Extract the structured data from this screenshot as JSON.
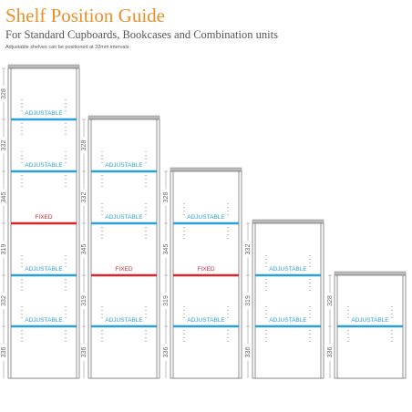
{
  "header": {
    "title": "Shelf Position Guide",
    "subtitle": "For Standard Cupboards, Bookcases and Combination units",
    "note": "Adjustable shelves can be positioned at 32mm intervals"
  },
  "cabinets": [
    {
      "shelves": [
        {
          "label": "ADJUSTABLE",
          "color": "#2a9fd8"
        },
        {
          "label": "ADJUSTABLE",
          "color": "#2a9fd8"
        },
        {
          "label": "FIXED",
          "color": "#d8262c"
        },
        {
          "label": "ADJUSTABLE",
          "color": "#2a9fd8"
        },
        {
          "label": "ADJUSTABLE",
          "color": "#2a9fd8"
        }
      ],
      "dims": [
        328,
        332,
        345,
        319,
        332,
        336
      ]
    },
    {
      "shelves": [
        {
          "label": "ADJUSTABLE",
          "color": "#2a9fd8"
        },
        {
          "label": "ADJUSTABLE",
          "color": "#2a9fd8"
        },
        {
          "label": "FIXED",
          "color": "#d8262c"
        },
        {
          "label": "ADJUSTABLE",
          "color": "#2a9fd8"
        }
      ],
      "dims": [
        328,
        332,
        345,
        319,
        336
      ]
    },
    {
      "shelves": [
        {
          "label": "ADJUSTABLE",
          "color": "#2a9fd8"
        },
        {
          "label": "FIXED",
          "color": "#d8262c"
        },
        {
          "label": "ADJUSTABLE",
          "color": "#2a9fd8"
        }
      ],
      "dims": [
        328,
        345,
        319,
        336
      ]
    },
    {
      "shelves": [
        {
          "label": "ADJUSTABLE",
          "color": "#2a9fd8"
        },
        {
          "label": "ADJUSTABLE",
          "color": "#2a9fd8"
        }
      ],
      "dims": [
        332,
        319,
        336
      ]
    },
    {
      "shelves": [
        {
          "label": "ADJUSTABLE",
          "color": "#2a9fd8"
        }
      ],
      "dims": [
        328,
        336
      ]
    }
  ]
}
